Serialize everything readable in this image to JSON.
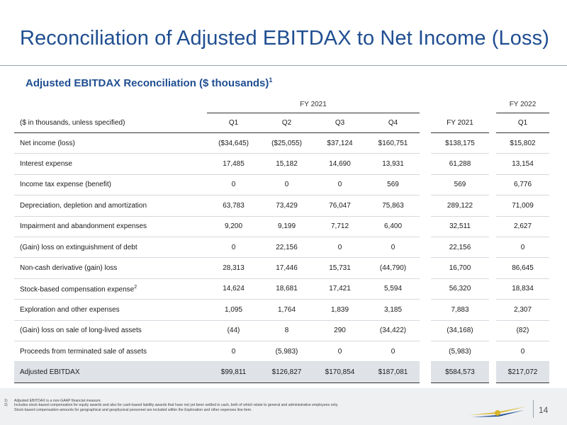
{
  "page": {
    "title": "Reconciliation of Adjusted EBITDAX to Net Income (Loss)",
    "subtitle": "Adjusted EBITDAX Reconciliation ($ thousands)",
    "subtitle_footnote_mark": "1",
    "page_number": "14"
  },
  "table": {
    "group_headers": {
      "fy2021": "FY 2021",
      "fy2022": "FY 2022"
    },
    "columns": {
      "label": "($ in thousands, unless specified)",
      "q1_2021": "Q1",
      "q2_2021": "Q2",
      "q3_2021": "Q3",
      "q4_2021": "Q4",
      "fy2021": "FY 2021",
      "q1_2022": "Q1"
    },
    "rows": [
      {
        "label": "Net income (loss)",
        "values": [
          "($34,645)",
          "($25,055)",
          "$37,124",
          "$160,751",
          "$138,175",
          "$15,802"
        ]
      },
      {
        "label": "Interest expense",
        "values": [
          "17,485",
          "15,182",
          "14,690",
          "13,931",
          "61,288",
          "13,154"
        ]
      },
      {
        "label": "Income tax expense (benefit)",
        "values": [
          "0",
          "0",
          "0",
          "569",
          "569",
          "6,776"
        ]
      },
      {
        "label": "Depreciation, depletion and amortization",
        "values": [
          "63,783",
          "73,429",
          "76,047",
          "75,863",
          "289,122",
          "71,009"
        ]
      },
      {
        "label": "Impairment and abandonment expenses",
        "values": [
          "9,200",
          "9,199",
          "7,712",
          "6,400",
          "32,511",
          "2,627"
        ]
      },
      {
        "label": "(Gain) loss on extinguishment of debt",
        "values": [
          "0",
          "22,156",
          "0",
          "0",
          "22,156",
          "0"
        ]
      },
      {
        "label": "Non-cash derivative (gain) loss",
        "values": [
          "28,313",
          "17,446",
          "15,731",
          "(44,790)",
          "16,700",
          "86,645"
        ]
      },
      {
        "label": "Stock-based compensation expense",
        "footnote": "2",
        "values": [
          "14,624",
          "18,681",
          "17,421",
          "5,594",
          "56,320",
          "18,834"
        ]
      },
      {
        "label": "Exploration and other expenses",
        "values": [
          "1,095",
          "1,764",
          "1,839",
          "3,185",
          "7,883",
          "2,307"
        ]
      },
      {
        "label": "(Gain) loss on sale of long-lived assets",
        "values": [
          "(44)",
          "8",
          "290",
          "(34,422)",
          "(34,168)",
          "(82)"
        ]
      },
      {
        "label": "Proceeds from terminated sale of assets",
        "values": [
          "0",
          "(5,983)",
          "0",
          "0",
          "(5,983)",
          "0"
        ]
      }
    ],
    "total": {
      "label": "Adjusted EBITDAX",
      "values": [
        "$99,811",
        "$126,827",
        "$170,854",
        "$187,081",
        "$584,573",
        "$217,072"
      ]
    }
  },
  "footnotes": [
    {
      "num": "1)",
      "text": "Adjusted EBITDAX is a non-GAAP financial measure."
    },
    {
      "num": "2)",
      "text": "Includes stock-based compensation for equity awards and also for cash-based liability awards that have not yet been settled in cash, both of which relate to general and administrative employees only."
    },
    {
      "num": "",
      "text": "Stock-based compensation amounts for geographical and geophysical personnel are included within the Exploration and other expenses line item."
    }
  ],
  "colors": {
    "title_blue": "#1f4e91",
    "total_row_bg": "#dfe3e8",
    "logo_gold": "#d9b62a"
  }
}
